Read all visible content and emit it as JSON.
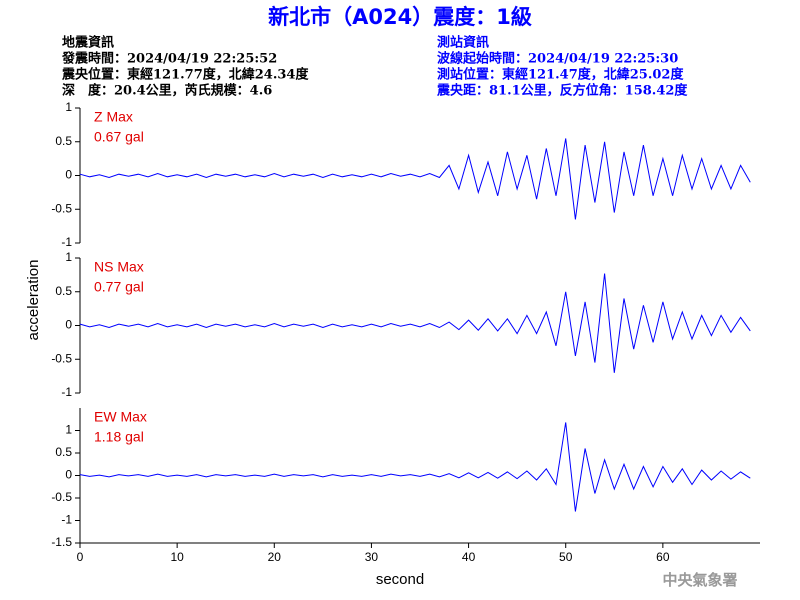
{
  "title": "新北市（A024）震度：1級",
  "header_left": [
    "地震資訊",
    "發震時間：2024/04/19 22:25:52",
    "震央位置：東經121.77度，北緯24.34度",
    "深　度：20.4公里，芮氏規模：4.6"
  ],
  "header_right": [
    "測站資訊",
    "波線起始時間：2024/04/19 22:25:30",
    "測站位置：東經121.47度，北緯25.02度",
    "震央距：81.1公里，反方位角：158.42度"
  ],
  "y_label": "acceleration",
  "footer": "中央氣象署",
  "chart_data": [
    {
      "type": "line",
      "annotations": [
        "Z Max",
        "0.67 gal"
      ],
      "x": [
        0,
        1,
        2,
        3,
        4,
        5,
        6,
        7,
        8,
        9,
        10,
        11,
        12,
        13,
        14,
        15,
        16,
        17,
        18,
        19,
        20,
        21,
        22,
        23,
        24,
        25,
        26,
        27,
        28,
        29,
        30,
        31,
        32,
        33,
        34,
        35,
        36,
        37,
        38,
        39,
        40,
        41,
        42,
        43,
        44,
        45,
        46,
        47,
        48,
        49,
        50,
        51,
        52,
        53,
        54,
        55,
        56,
        57,
        58,
        59,
        60,
        61,
        62,
        63,
        64,
        65,
        66,
        67,
        68,
        69
      ],
      "series": [
        {
          "color": "#0000ff",
          "values": [
            0.02,
            -0.02,
            0.01,
            -0.03,
            0.02,
            -0.01,
            0.02,
            -0.02,
            0.03,
            -0.02,
            0.01,
            -0.02,
            0.02,
            -0.03,
            0.02,
            -0.01,
            0.02,
            -0.02,
            0.01,
            -0.02,
            0.03,
            -0.02,
            0.02,
            -0.01,
            0.02,
            -0.03,
            0.02,
            -0.02,
            0.01,
            -0.02,
            0.02,
            -0.02,
            0.03,
            -0.01,
            0.02,
            -0.02,
            0.03,
            -0.03,
            0.15,
            -0.2,
            0.3,
            -0.25,
            0.2,
            -0.3,
            0.35,
            -0.2,
            0.3,
            -0.35,
            0.4,
            -0.3,
            0.55,
            -0.65,
            0.45,
            -0.4,
            0.5,
            -0.55,
            0.35,
            -0.3,
            0.45,
            -0.3,
            0.25,
            -0.3,
            0.3,
            -0.2,
            0.25,
            -0.2,
            0.15,
            -0.2,
            0.15,
            -0.1
          ]
        }
      ],
      "xlim": [
        0,
        70
      ],
      "ylim": [
        -1,
        1
      ],
      "yticks": [
        -1,
        -0.5,
        0,
        0.5,
        1
      ]
    },
    {
      "type": "line",
      "annotations": [
        "NS Max",
        "0.77 gal"
      ],
      "x": [
        0,
        1,
        2,
        3,
        4,
        5,
        6,
        7,
        8,
        9,
        10,
        11,
        12,
        13,
        14,
        15,
        16,
        17,
        18,
        19,
        20,
        21,
        22,
        23,
        24,
        25,
        26,
        27,
        28,
        29,
        30,
        31,
        32,
        33,
        34,
        35,
        36,
        37,
        38,
        39,
        40,
        41,
        42,
        43,
        44,
        45,
        46,
        47,
        48,
        49,
        50,
        51,
        52,
        53,
        54,
        55,
        56,
        57,
        58,
        59,
        60,
        61,
        62,
        63,
        64,
        65,
        66,
        67,
        68,
        69
      ],
      "series": [
        {
          "color": "#0000ff",
          "values": [
            0.02,
            -0.02,
            0.01,
            -0.03,
            0.02,
            -0.01,
            0.02,
            -0.02,
            0.03,
            -0.02,
            0.01,
            -0.02,
            0.02,
            -0.03,
            0.02,
            -0.01,
            0.02,
            -0.02,
            0.01,
            -0.02,
            0.03,
            -0.02,
            0.02,
            -0.01,
            0.02,
            -0.03,
            0.02,
            -0.02,
            0.01,
            -0.02,
            0.02,
            -0.02,
            0.03,
            -0.01,
            0.02,
            -0.02,
            0.03,
            -0.03,
            0.05,
            -0.06,
            0.08,
            -0.07,
            0.1,
            -0.08,
            0.1,
            -0.12,
            0.15,
            -0.12,
            0.2,
            -0.3,
            0.5,
            -0.45,
            0.35,
            -0.55,
            0.77,
            -0.7,
            0.4,
            -0.35,
            0.3,
            -0.25,
            0.35,
            -0.2,
            0.2,
            -0.2,
            0.15,
            -0.15,
            0.15,
            -0.1,
            0.12,
            -0.08
          ]
        }
      ],
      "xlim": [
        0,
        70
      ],
      "ylim": [
        -1,
        1
      ],
      "yticks": [
        -1,
        -0.5,
        0,
        0.5,
        1
      ]
    },
    {
      "type": "line",
      "annotations": [
        "EW Max",
        "1.18 gal"
      ],
      "x": [
        0,
        1,
        2,
        3,
        4,
        5,
        6,
        7,
        8,
        9,
        10,
        11,
        12,
        13,
        14,
        15,
        16,
        17,
        18,
        19,
        20,
        21,
        22,
        23,
        24,
        25,
        26,
        27,
        28,
        29,
        30,
        31,
        32,
        33,
        34,
        35,
        36,
        37,
        38,
        39,
        40,
        41,
        42,
        43,
        44,
        45,
        46,
        47,
        48,
        49,
        50,
        51,
        52,
        53,
        54,
        55,
        56,
        57,
        58,
        59,
        60,
        61,
        62,
        63,
        64,
        65,
        66,
        67,
        68,
        69
      ],
      "series": [
        {
          "color": "#0000ff",
          "values": [
            0.02,
            -0.02,
            0.01,
            -0.03,
            0.02,
            -0.01,
            0.02,
            -0.02,
            0.03,
            -0.02,
            0.01,
            -0.02,
            0.02,
            -0.03,
            0.02,
            -0.01,
            0.02,
            -0.02,
            0.01,
            -0.02,
            0.03,
            -0.02,
            0.02,
            -0.01,
            0.02,
            -0.03,
            0.02,
            -0.02,
            0.01,
            -0.02,
            0.02,
            -0.02,
            0.03,
            -0.01,
            0.02,
            -0.02,
            0.03,
            -0.03,
            0.04,
            -0.05,
            0.06,
            -0.05,
            0.07,
            -0.06,
            0.08,
            -0.07,
            0.1,
            -0.1,
            0.15,
            -0.2,
            1.18,
            -0.8,
            0.6,
            -0.4,
            0.35,
            -0.3,
            0.25,
            -0.3,
            0.2,
            -0.25,
            0.2,
            -0.15,
            0.15,
            -0.2,
            0.12,
            -0.1,
            0.1,
            -0.08,
            0.08,
            -0.06
          ]
        }
      ],
      "xlim": [
        0,
        70
      ],
      "ylim": [
        -1.5,
        1.5
      ],
      "yticks": [
        -1.5,
        -1,
        -0.5,
        0,
        0.5,
        1
      ],
      "xticks": [
        0,
        10,
        20,
        30,
        40,
        50,
        60
      ],
      "x_label": "second"
    }
  ]
}
